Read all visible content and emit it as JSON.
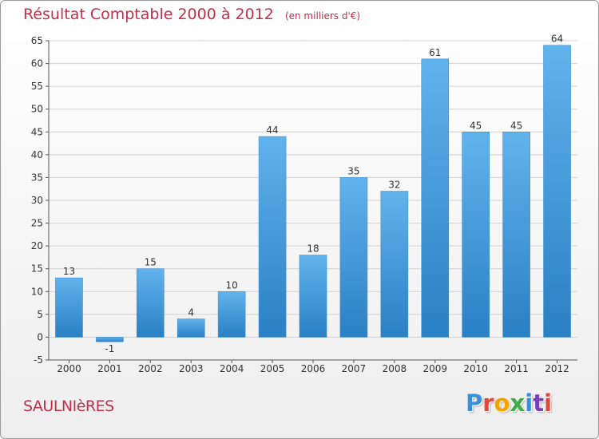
{
  "header": {
    "title": "Résultat Comptable 2000 à 2012",
    "subtitle": "(en milliers d'€)"
  },
  "footer": {
    "town": "SAULNIèRES",
    "brand": "Proxiti"
  },
  "colors": {
    "title": "#c0304a",
    "bar_light": "#61b3ec",
    "bar_dark": "#2a80c4",
    "grid": "#cfcfcf",
    "brand": [
      "#3b8fd6",
      "#e0473d",
      "#f0a400",
      "#3fae49",
      "#3b8fd6",
      "#7a3fb5",
      "#e0473d"
    ]
  },
  "chart_data": {
    "type": "bar",
    "title": "Résultat Comptable 2000 à 2012",
    "subtitle": "(en milliers d'€)",
    "xlabel": "",
    "ylabel": "",
    "categories": [
      "2000",
      "2001",
      "2002",
      "2003",
      "2004",
      "2005",
      "2006",
      "2007",
      "2008",
      "2009",
      "2010",
      "2011",
      "2012"
    ],
    "values": [
      13,
      -1,
      15,
      4,
      10,
      44,
      18,
      35,
      32,
      61,
      45,
      45,
      64
    ],
    "value_labels": [
      "13",
      "-1",
      "15",
      "4",
      "10",
      "44",
      "18",
      "35",
      "32",
      "61",
      "45",
      "45",
      "64"
    ],
    "ylim": [
      -5,
      65
    ],
    "yticks": [
      -5,
      0,
      5,
      10,
      15,
      20,
      25,
      30,
      35,
      40,
      45,
      50,
      55,
      60,
      65
    ],
    "grid": true,
    "legend": "none"
  }
}
